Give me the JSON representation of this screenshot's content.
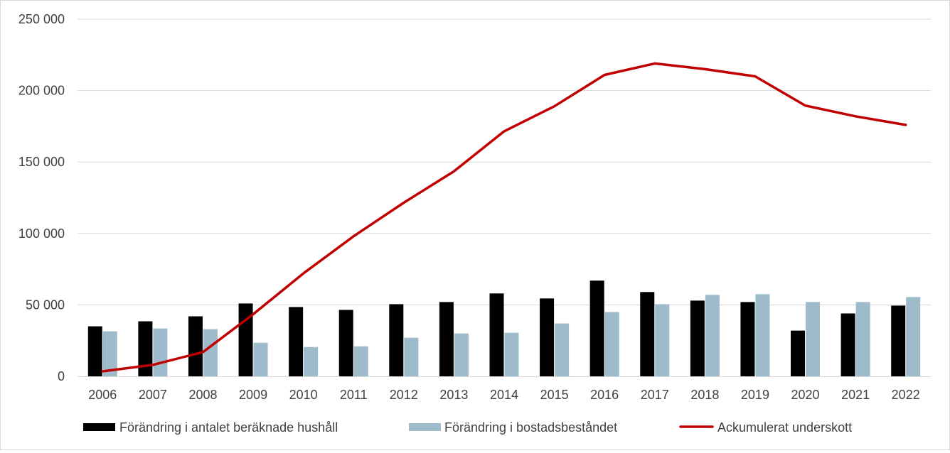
{
  "chart_data": {
    "type": "bar",
    "categories": [
      "2006",
      "2007",
      "2008",
      "2009",
      "2010",
      "2011",
      "2012",
      "2013",
      "2014",
      "2015",
      "2016",
      "2017",
      "2018",
      "2019",
      "2020",
      "2021",
      "2022"
    ],
    "series": [
      {
        "name": "Förändring i antalet beräknade hushåll",
        "type": "bar",
        "color": "#000000",
        "values": [
          35000,
          38500,
          42000,
          51000,
          48500,
          46500,
          50500,
          52000,
          58000,
          54500,
          67000,
          59000,
          53000,
          52000,
          32000,
          44000,
          49500
        ]
      },
      {
        "name": "Förändring i bostadsbeståndet",
        "type": "bar",
        "color": "#9ebbcc",
        "values": [
          31500,
          33500,
          33000,
          23500,
          20500,
          21000,
          27000,
          30000,
          30500,
          37000,
          45000,
          50500,
          57000,
          57500,
          52000,
          52000,
          55500
        ]
      },
      {
        "name": "Ackumulerat underskott",
        "type": "line",
        "color": "#c00000",
        "values": [
          3500,
          8000,
          17000,
          43500,
          72000,
          98000,
          121500,
          143500,
          171500,
          189000,
          211000,
          219000,
          215000,
          210000,
          189500,
          182000,
          176000
        ]
      }
    ],
    "yticks": [
      "0",
      "50 000",
      "100 000",
      "150 000",
      "200 000",
      "250 000"
    ],
    "ylim": [
      0,
      250000
    ],
    "grid": true,
    "legend": "bottom"
  }
}
